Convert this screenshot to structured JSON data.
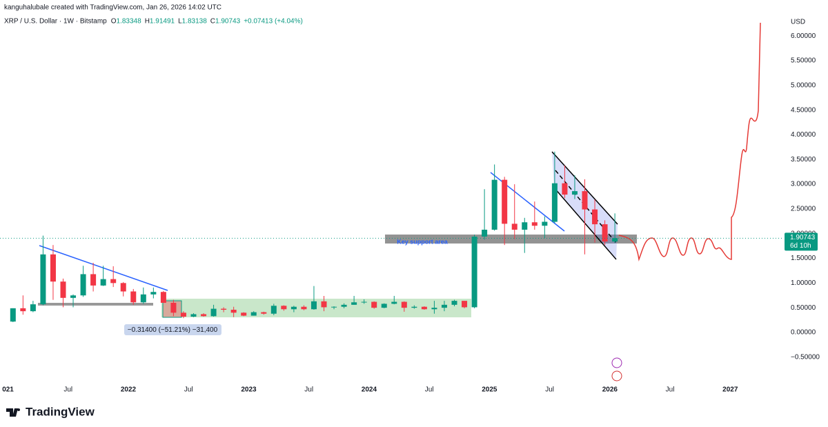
{
  "header": {
    "author_line": "kanguhalubale created with TradingView.com, Jan 26, 2026 14:02 UTC",
    "symbol": "XRP / U.S. Dollar · 1W · Bitstamp",
    "ohlc": [
      "O",
      "1.83348",
      "H",
      "1.91491",
      "L",
      "1.83138",
      "C",
      "1.90743"
    ],
    "change": "+0.07413 (+4.04%)"
  },
  "chart_data": {
    "type": "candlestick",
    "up_color": "#089981",
    "down_color": "#f23645",
    "grid": false,
    "y_unit": "USD",
    "x": [
      "2021-01",
      "2021-02",
      "2021-03",
      "2021-04",
      "2021-05",
      "2021-06",
      "2021-07",
      "2021-08",
      "2021-09",
      "2021-10",
      "2021-11",
      "2021-12",
      "2022-01",
      "2022-02",
      "2022-03",
      "2022-04",
      "2022-05",
      "2022-06",
      "2022-07",
      "2022-08",
      "2022-09",
      "2022-10",
      "2022-11",
      "2022-12",
      "2023-01",
      "2023-02",
      "2023-03",
      "2023-04",
      "2023-05",
      "2023-06",
      "2023-07",
      "2023-08",
      "2023-09",
      "2023-10",
      "2023-11",
      "2023-12",
      "2024-01",
      "2024-02",
      "2024-03",
      "2024-04",
      "2024-05",
      "2024-06",
      "2024-07",
      "2024-08",
      "2024-09",
      "2024-10",
      "2024-11",
      "2024-12",
      "2025-01",
      "2025-02",
      "2025-03",
      "2025-04",
      "2025-05",
      "2025-06",
      "2025-07",
      "2025-08",
      "2025-09",
      "2025-10",
      "2025-11",
      "2025-12",
      "2026-01"
    ],
    "open": [
      0.22,
      0.49,
      0.43,
      0.57,
      1.58,
      1.03,
      0.7,
      0.75,
      1.18,
      0.95,
      1.08,
      1.0,
      0.83,
      0.61,
      0.77,
      0.82,
      0.6,
      0.4,
      0.32,
      0.37,
      0.33,
      0.48,
      0.46,
      0.4,
      0.34,
      0.41,
      0.38,
      0.54,
      0.47,
      0.52,
      0.47,
      0.63,
      0.51,
      0.52,
      0.56,
      0.61,
      0.62,
      0.5,
      0.58,
      0.62,
      0.5,
      0.52,
      0.47,
      0.5,
      0.56,
      0.64,
      0.51,
      1.94,
      2.08,
      3.09,
      2.2,
      2.08,
      2.23,
      2.16,
      2.24,
      3.02,
      2.79,
      2.86,
      2.49,
      2.19,
      1.84
    ],
    "high": [
      0.49,
      0.75,
      0.64,
      1.96,
      1.77,
      1.09,
      0.77,
      1.35,
      1.41,
      1.35,
      1.34,
      1.02,
      0.88,
      0.91,
      0.91,
      0.84,
      0.66,
      0.43,
      0.39,
      0.39,
      0.56,
      0.51,
      0.52,
      0.41,
      0.43,
      0.42,
      0.58,
      0.55,
      0.54,
      0.55,
      0.94,
      0.74,
      0.53,
      0.59,
      0.74,
      0.67,
      0.63,
      0.59,
      0.74,
      0.63,
      0.55,
      0.53,
      0.64,
      0.64,
      0.66,
      0.64,
      1.98,
      2.9,
      3.4,
      3.15,
      3.0,
      2.32,
      2.65,
      2.35,
      3.66,
      3.38,
      3.18,
      3.1,
      2.69,
      2.27,
      2.41
    ],
    "low": [
      0.21,
      0.36,
      0.41,
      0.55,
      0.66,
      0.51,
      0.51,
      0.72,
      0.83,
      0.94,
      0.92,
      0.73,
      0.56,
      0.58,
      0.69,
      0.6,
      0.33,
      0.29,
      0.31,
      0.32,
      0.32,
      0.41,
      0.31,
      0.33,
      0.34,
      0.36,
      0.35,
      0.44,
      0.41,
      0.45,
      0.46,
      0.43,
      0.47,
      0.49,
      0.56,
      0.58,
      0.48,
      0.49,
      0.57,
      0.42,
      0.48,
      0.46,
      0.38,
      0.43,
      0.53,
      0.49,
      0.49,
      1.88,
      2.06,
      1.77,
      1.89,
      1.61,
      2.08,
      1.91,
      2.21,
      2.72,
      2.7,
      1.58,
      1.82,
      1.77,
      1.81
    ],
    "close": [
      0.49,
      0.43,
      0.57,
      1.58,
      1.03,
      0.7,
      0.75,
      1.18,
      0.95,
      1.08,
      1.0,
      0.83,
      0.61,
      0.77,
      0.82,
      0.6,
      0.4,
      0.32,
      0.37,
      0.33,
      0.48,
      0.46,
      0.4,
      0.34,
      0.41,
      0.38,
      0.54,
      0.47,
      0.52,
      0.47,
      0.63,
      0.51,
      0.52,
      0.56,
      0.61,
      0.62,
      0.5,
      0.58,
      0.62,
      0.5,
      0.52,
      0.47,
      0.5,
      0.56,
      0.64,
      0.51,
      1.94,
      2.08,
      3.09,
      2.2,
      2.08,
      2.23,
      2.16,
      2.24,
      3.02,
      2.79,
      2.86,
      2.49,
      2.19,
      1.84,
      1.91
    ],
    "xlim": [
      "2020-12",
      "2027-06"
    ],
    "xticks": [
      {
        "value": "2021-01",
        "label": "021"
      },
      {
        "value": "2021-07",
        "label": "Jul"
      },
      {
        "value": "2022-01",
        "label": "2022"
      },
      {
        "value": "2022-07",
        "label": "Jul"
      },
      {
        "value": "2023-01",
        "label": "2023"
      },
      {
        "value": "2023-07",
        "label": "Jul"
      },
      {
        "value": "2024-01",
        "label": "2024"
      },
      {
        "value": "2024-07",
        "label": "Jul"
      },
      {
        "value": "2025-01",
        "label": "2025"
      },
      {
        "value": "2025-07",
        "label": "Jul"
      },
      {
        "value": "2026-01",
        "label": "2026"
      },
      {
        "value": "2026-07",
        "label": "Jul"
      },
      {
        "value": "2027-01",
        "label": "2027"
      }
    ],
    "ylim": [
      -1.02,
      6.45
    ],
    "yticks": [
      {
        "value": -0.5,
        "label": "−0.50000"
      },
      {
        "value": 0,
        "label": "0.00000"
      },
      {
        "value": 0.5,
        "label": "0.50000"
      },
      {
        "value": 1,
        "label": "1.00000"
      },
      {
        "value": 1.5,
        "label": "1.50000"
      },
      {
        "value": 2,
        "label": "2.00000"
      },
      {
        "value": 2.5,
        "label": "2.50000"
      },
      {
        "value": 3,
        "label": "3.00000"
      },
      {
        "value": 3.5,
        "label": "3.50000"
      },
      {
        "value": 4,
        "label": "4.00000"
      },
      {
        "value": 4.5,
        "label": "4.50000"
      },
      {
        "value": 5,
        "label": "5.00000"
      },
      {
        "value": 5.5,
        "label": "5.50000"
      },
      {
        "value": 6,
        "label": "6.00000"
      }
    ],
    "last_price": {
      "value": 1.90743,
      "label": "1.90743"
    },
    "countdown": "6d 10h",
    "annotations": {
      "support": "Key support area",
      "measure": "−0.31400 (−51.21%) −31,400"
    }
  },
  "footer": {
    "logo": "TradingView"
  }
}
